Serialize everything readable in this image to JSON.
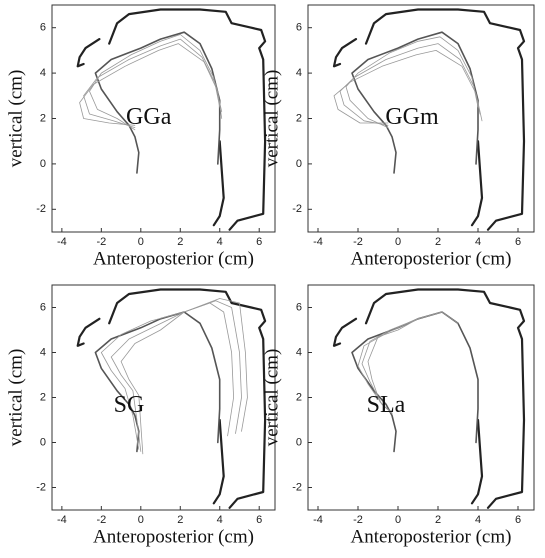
{
  "chart_data": [
    {
      "type": "line",
      "title": "GGa",
      "xlabel": "Anteroposterior (cm)",
      "ylabel": "vertical (cm)",
      "xlim": [
        -4.5,
        6.8
      ],
      "ylim": [
        -3,
        7
      ],
      "xticks": [
        -4,
        -2,
        0,
        2,
        4,
        6
      ],
      "yticks": [
        -2,
        0,
        2,
        4,
        6
      ],
      "series": [
        {
          "color": "#222222",
          "linewidth": 2.2,
          "x": [
            -2.1,
            -2.8,
            -3.1,
            -3.2,
            -2.9,
            null,
            -1.6,
            -1.2,
            -0.6,
            1.0,
            3.0,
            4.3,
            4.6,
            5.6,
            6.1,
            6.3,
            6.0,
            6.2,
            6.3,
            6.2,
            4.9,
            4.5,
            null,
            4.0,
            4.2,
            4.0,
            3.7
          ],
          "y": [
            5.5,
            5.1,
            4.7,
            4.3,
            4.4,
            null,
            5.3,
            6.2,
            6.6,
            6.8,
            6.8,
            6.7,
            6.2,
            6.0,
            5.9,
            5.4,
            5.1,
            4.6,
            1.0,
            -2.2,
            -2.5,
            -2.9,
            null,
            1.0,
            -1.5,
            -2.3,
            -2.7
          ]
        },
        {
          "color": "#555555",
          "linewidth": 1.6,
          "x": [
            -0.2,
            -0.1,
            -0.3,
            -0.6,
            -1.2,
            -2.0,
            -2.3,
            -1.5,
            0,
            1.0,
            2.2,
            3.0,
            3.6,
            4.0,
            4.0,
            3.9
          ],
          "y": [
            -0.4,
            0.5,
            1.2,
            1.7,
            2.3,
            3.3,
            4.0,
            4.6,
            5.1,
            5.5,
            5.8,
            5.3,
            4.2,
            2.8,
            1.5,
            0.0
          ]
        },
        {
          "color": "#999999",
          "linewidth": 0.8,
          "x": [
            -0.3,
            -1.2,
            -2.2,
            -2.6,
            -2.0,
            -0.5,
            1.0,
            2.0,
            3.0,
            3.7,
            4.0
          ],
          "y": [
            1.5,
            2.0,
            2.4,
            3.2,
            4.0,
            4.8,
            5.4,
            5.7,
            5.0,
            3.8,
            2.5
          ]
        },
        {
          "color": "#999999",
          "linewidth": 0.8,
          "x": [
            -0.3,
            -1.4,
            -2.6,
            -2.9,
            -2.2,
            -0.6,
            1.0,
            2.0,
            3.1,
            3.8,
            4.1
          ],
          "y": [
            1.6,
            1.9,
            2.2,
            3.0,
            3.8,
            4.6,
            5.2,
            5.5,
            4.7,
            3.5,
            2.3
          ]
        },
        {
          "color": "#999999",
          "linewidth": 0.8,
          "x": [
            -0.3,
            -1.6,
            -2.9,
            -3.1,
            -2.4,
            -0.8,
            0.9,
            1.9,
            3.2,
            3.9,
            4.1
          ],
          "y": [
            1.7,
            1.8,
            2.0,
            2.7,
            3.5,
            4.3,
            5.0,
            5.3,
            4.5,
            3.2,
            2.0
          ]
        }
      ]
    },
    {
      "type": "line",
      "title": "GGm",
      "xlabel": "Anteroposterior (cm)",
      "ylabel": "vertical (cm)",
      "xlim": [
        -4.5,
        6.8
      ],
      "ylim": [
        -3,
        7
      ],
      "xticks": [
        -4,
        -2,
        0,
        2,
        4,
        6
      ],
      "yticks": [
        -2,
        0,
        2,
        4,
        6
      ],
      "series": [
        {
          "color": "#222222",
          "linewidth": 2.2,
          "x": [
            -2.1,
            -2.8,
            -3.1,
            -3.2,
            -2.9,
            null,
            -1.6,
            -1.2,
            -0.6,
            1.0,
            3.0,
            4.3,
            4.6,
            5.6,
            6.1,
            6.3,
            6.0,
            6.2,
            6.3,
            6.2,
            4.9,
            4.5,
            null,
            4.0,
            4.2,
            4.0,
            3.7
          ],
          "y": [
            5.5,
            5.1,
            4.7,
            4.3,
            4.4,
            null,
            5.3,
            6.2,
            6.6,
            6.8,
            6.8,
            6.7,
            6.2,
            6.0,
            5.9,
            5.4,
            5.1,
            4.6,
            1.0,
            -2.2,
            -2.5,
            -2.9,
            null,
            1.0,
            -1.5,
            -2.3,
            -2.7
          ]
        },
        {
          "color": "#555555",
          "linewidth": 1.6,
          "x": [
            -0.2,
            -0.1,
            -0.3,
            -0.6,
            -1.2,
            -2.0,
            -2.3,
            -1.5,
            0,
            1.0,
            2.2,
            3.0,
            3.6,
            4.0,
            4.0,
            3.9
          ],
          "y": [
            -0.4,
            0.5,
            1.2,
            1.7,
            2.3,
            3.3,
            4.0,
            4.6,
            5.1,
            5.5,
            5.8,
            5.3,
            4.2,
            2.8,
            1.5,
            0.0
          ]
        },
        {
          "color": "#999999",
          "linewidth": 0.8,
          "x": [
            -0.5,
            -1.5,
            -2.4,
            -2.6,
            -2.0,
            -0.4,
            1.0,
            2.1,
            3.0,
            3.7,
            4.0
          ],
          "y": [
            1.6,
            2.0,
            2.8,
            3.4,
            4.0,
            4.9,
            5.4,
            5.6,
            5.0,
            3.8,
            2.5
          ]
        },
        {
          "color": "#999999",
          "linewidth": 0.8,
          "x": [
            -0.5,
            -1.7,
            -2.7,
            -2.9,
            -2.2,
            -0.6,
            1.0,
            2.0,
            3.1,
            3.8,
            4.1
          ],
          "y": [
            1.7,
            1.9,
            2.6,
            3.2,
            3.8,
            4.6,
            5.1,
            5.3,
            4.6,
            3.4,
            2.2
          ]
        },
        {
          "color": "#999999",
          "linewidth": 0.8,
          "x": [
            -0.5,
            -1.9,
            -3.0,
            -3.2,
            -2.4,
            -0.8,
            0.9,
            1.9,
            3.2,
            3.9,
            4.2
          ],
          "y": [
            1.8,
            1.8,
            2.4,
            3.0,
            3.6,
            4.3,
            4.8,
            5.0,
            4.3,
            3.1,
            1.9
          ]
        }
      ]
    },
    {
      "type": "line",
      "title": "SG",
      "xlabel": "Anteroposterior (cm)",
      "ylabel": "vertical (cm)",
      "xlim": [
        -4.5,
        6.8
      ],
      "ylim": [
        -3,
        7
      ],
      "xticks": [
        -4,
        -2,
        0,
        2,
        4,
        6
      ],
      "yticks": [
        -2,
        0,
        2,
        4,
        6
      ],
      "series": [
        {
          "color": "#222222",
          "linewidth": 2.2,
          "x": [
            -2.1,
            -2.8,
            -3.1,
            -3.2,
            -2.9,
            null,
            -1.6,
            -1.2,
            -0.6,
            1.0,
            3.0,
            4.3,
            4.6,
            5.6,
            6.1,
            6.3,
            6.0,
            6.2,
            6.3,
            6.2,
            4.9,
            4.5,
            null,
            4.0,
            4.2,
            4.0,
            3.7
          ],
          "y": [
            5.5,
            5.1,
            4.7,
            4.3,
            4.4,
            null,
            5.3,
            6.2,
            6.6,
            6.8,
            6.8,
            6.7,
            6.2,
            6.0,
            5.9,
            5.4,
            5.1,
            4.6,
            1.0,
            -2.2,
            -2.5,
            -2.9,
            null,
            1.0,
            -1.5,
            -2.3,
            -2.7
          ]
        },
        {
          "color": "#555555",
          "linewidth": 1.6,
          "x": [
            -0.2,
            -0.1,
            -0.3,
            -0.6,
            -1.2,
            -2.0,
            -2.3,
            -1.5,
            0,
            1.0,
            2.2,
            3.0,
            3.6,
            4.0,
            4.0,
            3.9
          ],
          "y": [
            -0.4,
            0.5,
            1.2,
            1.7,
            2.3,
            3.3,
            4.0,
            4.6,
            5.1,
            5.5,
            5.8,
            5.3,
            4.2,
            2.8,
            1.5,
            0.0
          ]
        },
        {
          "color": "#999999",
          "linewidth": 0.8,
          "x": [
            -0.1,
            -0.4,
            -0.8,
            -1.5,
            -2.0,
            -1.0,
            0.5,
            2.2,
            3.5,
            4.2,
            4.6,
            4.7,
            4.4
          ],
          "y": [
            -0.3,
            1.2,
            2.4,
            3.2,
            4.0,
            4.8,
            5.4,
            5.8,
            6.2,
            5.8,
            4.0,
            2.0,
            0.3
          ]
        },
        {
          "color": "#999999",
          "linewidth": 0.8,
          "x": [
            0,
            -0.2,
            -0.4,
            -1.0,
            -1.5,
            -0.6,
            0.8,
            2.2,
            3.8,
            4.6,
            5.0,
            5.1,
            4.8
          ],
          "y": [
            -0.4,
            1.0,
            2.3,
            3.0,
            3.8,
            4.6,
            5.2,
            5.8,
            6.3,
            6.0,
            4.0,
            2.0,
            0.4
          ]
        },
        {
          "color": "#999999",
          "linewidth": 0.8,
          "x": [
            0.1,
            0,
            -0.1,
            -0.6,
            -1.0,
            -0.3,
            1.0,
            2.2,
            4.0,
            5.0,
            5.3,
            5.4,
            5.1
          ],
          "y": [
            -0.5,
            0.8,
            2.1,
            2.8,
            3.6,
            4.4,
            5.0,
            5.8,
            6.4,
            6.2,
            4.0,
            2.0,
            0.5
          ]
        }
      ]
    },
    {
      "type": "line",
      "title": "SLa",
      "xlabel": "Anteroposterior (cm)",
      "ylabel": "vertical (cm)",
      "xlim": [
        -4.5,
        6.8
      ],
      "ylim": [
        -3,
        7
      ],
      "xticks": [
        -4,
        -2,
        0,
        2,
        4,
        6
      ],
      "yticks": [
        -2,
        0,
        2,
        4,
        6
      ],
      "series": [
        {
          "color": "#222222",
          "linewidth": 2.2,
          "x": [
            -2.1,
            -2.8,
            -3.1,
            -3.2,
            -2.9,
            null,
            -1.6,
            -1.2,
            -0.6,
            1.0,
            3.0,
            4.3,
            4.6,
            5.6,
            6.1,
            6.3,
            6.0,
            6.2,
            6.3,
            6.2,
            4.9,
            4.5,
            null,
            4.0,
            4.2,
            4.0,
            3.7
          ],
          "y": [
            5.5,
            5.1,
            4.7,
            4.3,
            4.4,
            null,
            5.3,
            6.2,
            6.6,
            6.8,
            6.8,
            6.7,
            6.2,
            6.0,
            5.9,
            5.4,
            5.1,
            4.6,
            1.0,
            -2.2,
            -2.5,
            -2.9,
            null,
            1.0,
            -1.5,
            -2.3,
            -2.7
          ]
        },
        {
          "color": "#555555",
          "linewidth": 1.6,
          "x": [
            -0.2,
            -0.1,
            -0.3,
            -0.6,
            -1.2,
            -2.0,
            -2.3,
            -1.5,
            0,
            1.0,
            2.2,
            3.0,
            3.6,
            4.0,
            4.0,
            3.9
          ],
          "y": [
            -0.4,
            0.5,
            1.2,
            1.7,
            2.3,
            3.3,
            4.0,
            4.6,
            5.1,
            5.5,
            5.8,
            5.3,
            4.2,
            2.8,
            1.5,
            0.0
          ]
        },
        {
          "color": "#999999",
          "linewidth": 0.8,
          "x": [
            -0.3,
            -0.8,
            -1.5,
            -2.0,
            -1.7,
            -0.5,
            1.0,
            2.2,
            3.0
          ],
          "y": [
            1.3,
            1.7,
            2.6,
            3.4,
            4.3,
            4.9,
            5.5,
            5.8,
            5.3
          ]
        },
        {
          "color": "#999999",
          "linewidth": 0.8,
          "x": [
            -0.3,
            -0.8,
            -1.4,
            -1.8,
            -1.4,
            -0.4,
            1.0,
            2.2
          ],
          "y": [
            1.3,
            1.7,
            2.7,
            3.5,
            4.5,
            5.0,
            5.5,
            5.8
          ]
        },
        {
          "color": "#999999",
          "linewidth": 0.8,
          "x": [
            -0.3,
            -0.9,
            -1.3,
            -1.5,
            -1.0,
            0,
            1.0,
            2.2
          ],
          "y": [
            1.3,
            1.8,
            2.8,
            3.6,
            4.7,
            5.0,
            5.5,
            5.8
          ]
        }
      ]
    }
  ]
}
